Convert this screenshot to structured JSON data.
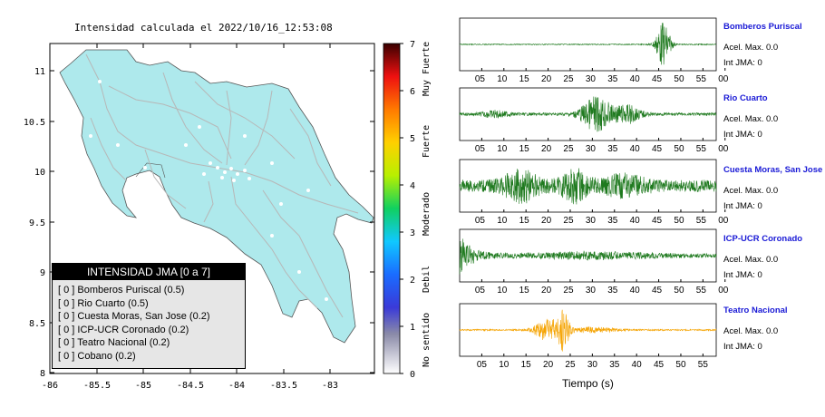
{
  "map": {
    "title": "Intensidad calculada el 2022/10/16_12:53:08",
    "lat_ticks": [
      "11",
      "10.5",
      "10",
      "9.5",
      "9",
      "8.5",
      "8"
    ],
    "lon_ticks": [
      "-86",
      "-85.5",
      "-85",
      "-84.5",
      "-84",
      "-83.5",
      "-83"
    ],
    "land_color": "#aee9ec",
    "road_color": "#b7b7b7"
  },
  "colorbar": {
    "ticks": [
      "0",
      "1",
      "2",
      "3",
      "4",
      "5",
      "6",
      "7"
    ],
    "labels": [
      "No sentido",
      "Debil",
      "Moderado",
      "Fuerte",
      "Muy Fuerte"
    ]
  },
  "legend": {
    "title": "INTENSIDAD JMA [0 a 7]",
    "items": [
      {
        "level": "[ 0 ]",
        "text": "Bomberos Puriscal (0.5)"
      },
      {
        "level": "[ 0 ]",
        "text": "Rio Cuarto (0.5)"
      },
      {
        "level": "[ 0 ]",
        "text": "Cuesta Moras, San Jose (0.2)"
      },
      {
        "level": "[ 0 ]",
        "text": "ICP-UCR Coronado (0.2)"
      },
      {
        "level": "[ 0 ]",
        "text": "Teatro Nacional (0.2)"
      },
      {
        "level": "[ 0 ]",
        "text": "Cobano (0.2)"
      }
    ]
  },
  "traces": [
    {
      "station": "Bomberos Puriscal",
      "acel": "Acel. Max. 0.0",
      "jma": "Int JMA: 0",
      "color": "#1f7a1f",
      "ticks": [
        "05",
        "10",
        "15",
        "20",
        "25",
        "30",
        "35",
        "40",
        "45",
        "50",
        "55",
        "00"
      ]
    },
    {
      "station": "Rio Cuarto",
      "acel": "Acel. Max. 0.0",
      "jma": "Int JMA: 0",
      "color": "#1f7a1f",
      "ticks": [
        "05",
        "10",
        "15",
        "20",
        "25",
        "30",
        "35",
        "40",
        "45",
        "50",
        "55",
        "00"
      ]
    },
    {
      "station": "Cuesta Moras, San Jose",
      "acel": "Acel. Max. 0.0",
      "jma": "Int JMA: 0",
      "color": "#1f7a1f",
      "ticks": [
        "05",
        "10",
        "15",
        "20",
        "25",
        "30",
        "35",
        "40",
        "45",
        "50",
        "55",
        "00"
      ]
    },
    {
      "station": "ICP-UCR Coronado",
      "acel": "Acel. Max. 0.0",
      "jma": "Int JMA: 0",
      "color": "#1f7a1f",
      "ticks": [
        "05",
        "10",
        "15",
        "20",
        "25",
        "30",
        "35",
        "40",
        "45",
        "50",
        "55",
        "00"
      ]
    },
    {
      "station": "Teatro Nacional",
      "acel": "Acel. Max. 0.0",
      "jma": "Int JMA: 0",
      "color": "#f5a300",
      "ticks": [
        "05",
        "10",
        "15",
        "20",
        "25",
        "30",
        "35",
        "40",
        "45",
        "50",
        "55"
      ]
    }
  ],
  "xlabel": "Tiempo (s)"
}
